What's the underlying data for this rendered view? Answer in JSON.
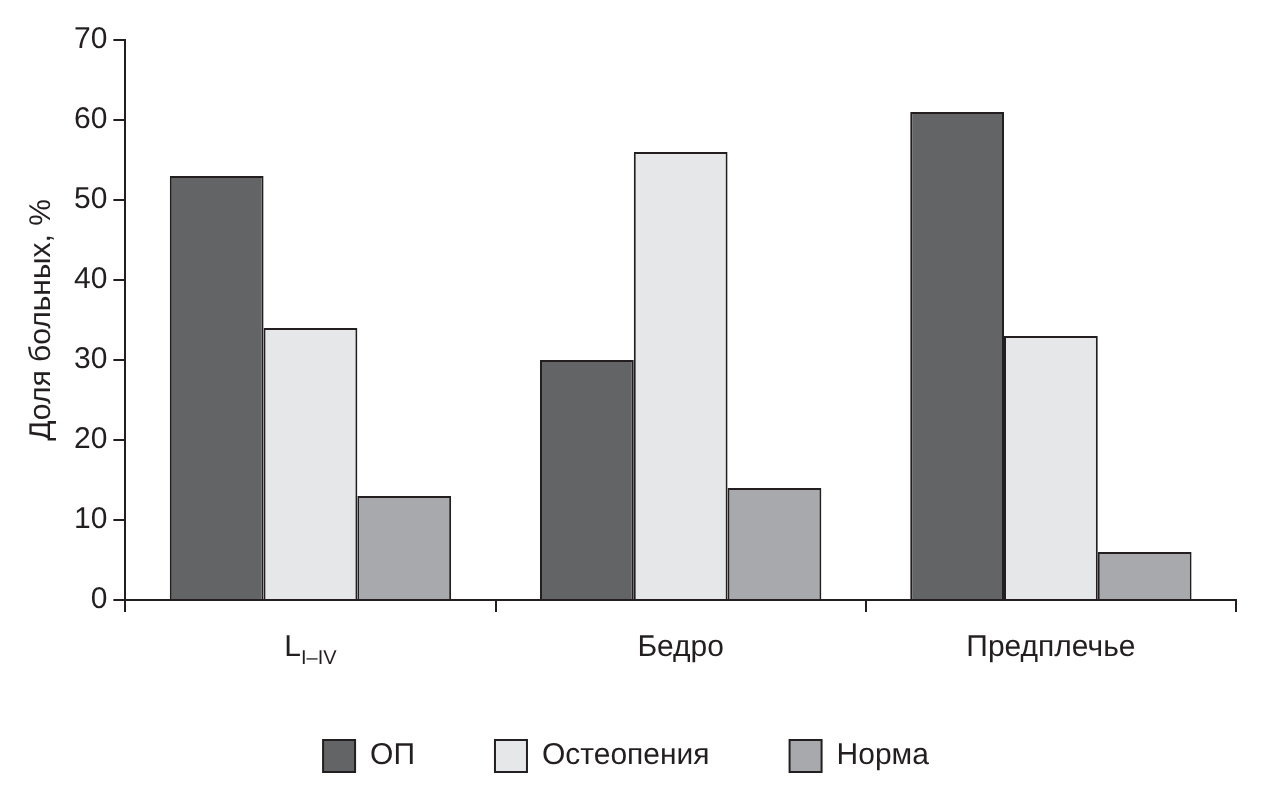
{
  "chart_data": {
    "type": "bar",
    "ylabel": "Доля больных, %",
    "categories": [
      "L$_{I–IV}$",
      "Бедро",
      "Предплечье"
    ],
    "series": [
      {
        "name": "ОП",
        "color": "#636466",
        "values": [
          53,
          30,
          61
        ]
      },
      {
        "name": "Остеопения",
        "color": "#e6e7e8",
        "values": [
          34,
          56,
          33
        ]
      },
      {
        "name": "Норма",
        "color": "#a7a9ac",
        "values": [
          13,
          14,
          6
        ]
      }
    ],
    "ylim": [
      0,
      70
    ],
    "yticks": [
      0,
      10,
      20,
      30,
      40,
      50,
      60,
      70
    ],
    "grid": false,
    "legend": "bottom"
  }
}
